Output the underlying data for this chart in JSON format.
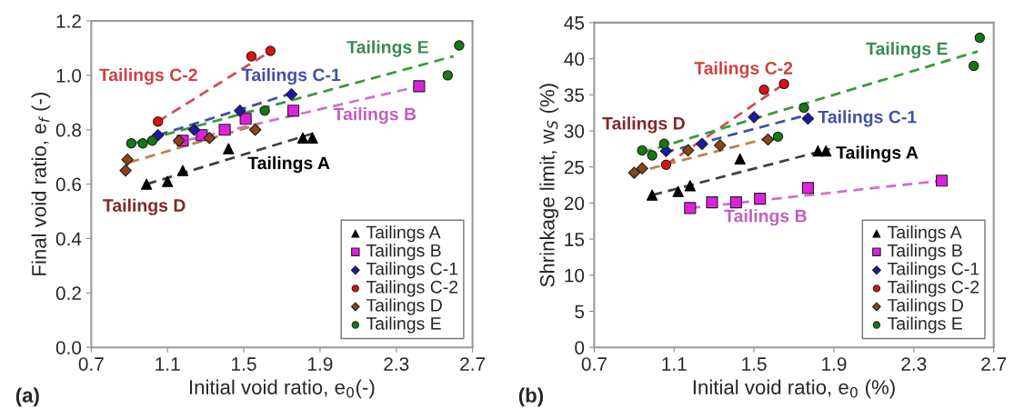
{
  "chart_data": [
    {
      "type": "scatter",
      "xlabel": "Initial void ratio, e$_{0}$(-)",
      "ylabel": "Final void ratio, e$_{f}$ (-)",
      "xlim": [
        0.7,
        2.7
      ],
      "xticks": [
        0.7,
        1.1,
        1.5,
        1.9,
        2.3,
        2.7
      ],
      "ylim": [
        0,
        1.2
      ],
      "yticks": [
        {
          "value": 0,
          "label": "0.0"
        },
        0.2,
        0.4,
        0.6,
        0.8,
        {
          "value": 1,
          "label": "1.0"
        },
        1.2
      ],
      "grid": false,
      "legend": "bottom right",
      "series": [
        {
          "name": "Tailings A",
          "color": "#000000",
          "marker": "triangle",
          "x": [
            0.99,
            1.1,
            1.18,
            1.42,
            1.81,
            1.86
          ],
          "values": [
            0.6,
            0.61,
            0.65,
            0.73,
            0.77,
            0.77
          ]
        },
        {
          "name": "Tailings B",
          "color": "#e020e0",
          "marker": "square",
          "x": [
            1.18,
            1.28,
            1.4,
            1.51,
            1.76,
            2.42
          ],
          "values": [
            0.76,
            0.78,
            0.8,
            0.84,
            0.87,
            0.96
          ]
        },
        {
          "name": "Tailings C-1",
          "color": "#1a1aa8",
          "marker": "diamond",
          "x": [
            1.05,
            1.24,
            1.48,
            1.75
          ],
          "values": [
            0.78,
            0.8,
            0.87,
            0.93
          ]
        },
        {
          "name": "Tailings C-2",
          "color": "#e01010",
          "marker": "circle",
          "x": [
            1.05,
            1.54,
            1.64
          ],
          "values": [
            0.83,
            1.07,
            1.09
          ]
        },
        {
          "name": "Tailings D",
          "color": "#8b4513",
          "marker": "diamond",
          "x": [
            0.88,
            0.89,
            1.16,
            1.32,
            1.56
          ],
          "values": [
            0.65,
            0.69,
            0.76,
            0.77,
            0.8
          ]
        },
        {
          "name": "Tailings E",
          "color": "#127a12",
          "marker": "circle",
          "x": [
            0.91,
            0.97,
            1.02,
            1.61,
            2.57,
            2.63
          ],
          "values": [
            0.75,
            0.75,
            0.76,
            0.87,
            1.0,
            1.11
          ]
        },
        {
          "type": "line",
          "color": "#404040",
          "line_style": "dashed",
          "x": [
            0.99,
            1.88
          ],
          "values": [
            0.6,
            0.79
          ]
        },
        {
          "type": "line",
          "color": "#d070d0",
          "line_style": "dashed",
          "x": [
            1.13,
            2.42
          ],
          "values": [
            0.75,
            0.96
          ]
        },
        {
          "type": "line",
          "color": "#4050a8",
          "line_style": "dashed",
          "x": [
            1.05,
            1.78
          ],
          "values": [
            0.78,
            0.94
          ]
        },
        {
          "type": "line",
          "color": "#d05050",
          "line_style": "dashed",
          "x": [
            1.05,
            1.62
          ],
          "values": [
            0.83,
            1.08
          ]
        },
        {
          "type": "line",
          "color": "#c08050",
          "line_style": "dashed",
          "x": [
            0.9,
            1.58
          ],
          "values": [
            0.68,
            0.82
          ]
        },
        {
          "type": "line",
          "color": "#3a9a3a",
          "line_style": "dashed",
          "x": [
            0.92,
            2.6
          ],
          "values": [
            0.75,
            1.07
          ]
        }
      ],
      "annotations": [
        "Tailings C-2",
        "Tailings C-1",
        "Tailings E",
        "Tailings B",
        "Tailings A",
        "Tailings D",
        "(a)"
      ]
    },
    {
      "type": "scatter",
      "xlabel": "Initial void ratio, e$_{0}$ (%)",
      "ylabel": "Shrinkage limit, w$_{S}$ (%)",
      "xlim": [
        0.7,
        2.7
      ],
      "xticks": [
        0.7,
        1.1,
        1.5,
        1.9,
        2.3,
        2.7
      ],
      "ylim": [
        0,
        45
      ],
      "yticks": [
        0,
        5,
        10,
        15,
        20,
        25,
        30,
        35,
        40,
        45
      ],
      "grid": false,
      "legend": "bottom right",
      "series": [
        {
          "name": "Tailings A",
          "color": "#000000",
          "marker": "triangle",
          "x": [
            0.99,
            1.12,
            1.18,
            1.43,
            1.82,
            1.86
          ],
          "values": [
            21.1,
            21.6,
            22.4,
            26.1,
            27.2,
            27.2
          ]
        },
        {
          "name": "Tailings B",
          "color": "#e020e0",
          "marker": "square",
          "x": [
            1.18,
            1.29,
            1.41,
            1.53,
            1.77,
            2.44
          ],
          "values": [
            19.3,
            20.1,
            20.1,
            20.6,
            22.1,
            23.1
          ]
        },
        {
          "name": "Tailings C-1",
          "color": "#1a1aa8",
          "marker": "diamond",
          "x": [
            1.06,
            1.24,
            1.5,
            1.77
          ],
          "values": [
            27.2,
            28.2,
            31.9,
            31.7
          ]
        },
        {
          "name": "Tailings C-2",
          "color": "#e01010",
          "marker": "circle",
          "x": [
            1.06,
            1.55,
            1.65
          ],
          "values": [
            25.3,
            35.7,
            36.5
          ]
        },
        {
          "name": "Tailings D",
          "color": "#8b4513",
          "marker": "diamond",
          "x": [
            0.9,
            0.94,
            1.17,
            1.33,
            1.57
          ],
          "values": [
            24.2,
            24.8,
            27.3,
            28.0,
            28.8
          ]
        },
        {
          "name": "Tailings E",
          "color": "#127a12",
          "marker": "circle",
          "x": [
            0.94,
            0.99,
            1.05,
            1.62,
            1.75,
            2.6,
            2.63
          ],
          "values": [
            27.3,
            26.6,
            28.2,
            29.2,
            33.2,
            39.0,
            42.9
          ]
        },
        {
          "type": "line",
          "color": "#404040",
          "line_style": "dashed",
          "x": [
            0.99,
            1.88
          ],
          "values": [
            21.1,
            27.5
          ]
        },
        {
          "type": "line",
          "color": "#d070d0",
          "line_style": "dashed",
          "x": [
            1.18,
            2.44
          ],
          "values": [
            19.3,
            23.1
          ]
        },
        {
          "type": "line",
          "color": "#4050a8",
          "line_style": "dashed",
          "x": [
            1.05,
            1.78
          ],
          "values": [
            27.0,
            32.3
          ]
        },
        {
          "type": "line",
          "color": "#d05050",
          "line_style": "dashed",
          "x": [
            1.06,
            1.65
          ],
          "values": [
            25.3,
            36.5
          ]
        },
        {
          "type": "line",
          "color": "#c08050",
          "line_style": "dashed",
          "x": [
            0.9,
            1.57
          ],
          "values": [
            24.2,
            29.0
          ]
        },
        {
          "type": "line",
          "color": "#3a9a3a",
          "line_style": "dashed",
          "x": [
            0.94,
            2.62
          ],
          "values": [
            27.0,
            41.0
          ]
        }
      ],
      "annotations": [
        "Tailings C-2",
        "Tailings D",
        "Tailings E",
        "Tailings C-1",
        "Tailings A",
        "Tailings B",
        "(b)"
      ]
    }
  ]
}
